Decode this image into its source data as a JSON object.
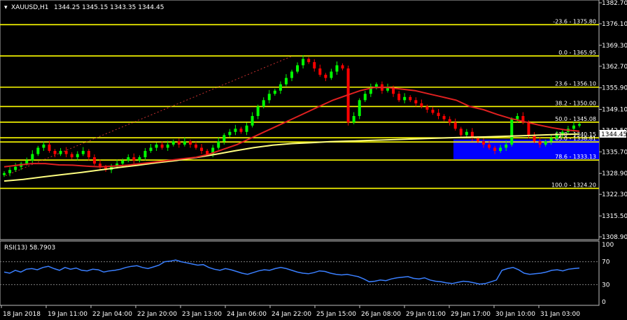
{
  "header": {
    "symbol": "XAUUSD,H1",
    "ohlc": "1344.25 1345.15 1343.35 1344.45"
  },
  "rsi": {
    "label": "RSI(13) 58.7903",
    "levels": [
      "100",
      "70",
      "30",
      "0"
    ],
    "value_ticks": [
      100,
      70,
      30,
      0
    ],
    "series": [
      52,
      50,
      55,
      52,
      57,
      58,
      56,
      60,
      62,
      58,
      55,
      60,
      57,
      59,
      55,
      54,
      57,
      56,
      52,
      54,
      55,
      57,
      60,
      62,
      63,
      60,
      58,
      61,
      64,
      70,
      71,
      73,
      70,
      68,
      66,
      64,
      65,
      60,
      57,
      55,
      58,
      56,
      53,
      50,
      48,
      51,
      54,
      56,
      55,
      58,
      60,
      58,
      55,
      52,
      50,
      49,
      51,
      54,
      53,
      50,
      48,
      47,
      48,
      46,
      44,
      40,
      35,
      36,
      38,
      37,
      40,
      42,
      43,
      44,
      41,
      40,
      42,
      38,
      36,
      35,
      33,
      32,
      34,
      36,
      35,
      33,
      31,
      32,
      35,
      38,
      55,
      58,
      60,
      56,
      50,
      48,
      49,
      50,
      52,
      55,
      56,
      54,
      57,
      58,
      59
    ]
  },
  "price_axis": {
    "labels": [
      "1382.70",
      "1376.10",
      "1369.30",
      "1362.70",
      "1355.90",
      "1349.10",
      "1342.50",
      "1335.70",
      "1328.90",
      "1322.30",
      "1315.50",
      "1308.90"
    ],
    "current_price": "1344.45"
  },
  "time_axis": {
    "labels": [
      "18 Jan 2018",
      "19 Jan 11:00",
      "22 Jan 04:00",
      "22 Jan 20:00",
      "23 Jan 13:00",
      "24 Jan 06:00",
      "24 Jan 22:00",
      "25 Jan 15:00",
      "26 Jan 08:00",
      "29 Jan 01:00",
      "29 Jan 17:00",
      "30 Jan 10:00",
      "31 Jan 03:00"
    ]
  },
  "fibonacci": [
    {
      "label": "-23.6 - 1375.80",
      "price": 1375.8
    },
    {
      "label": "0.0 - 1365.95",
      "price": 1365.95
    },
    {
      "label": "23.6 - 1356.10",
      "price": 1356.1
    },
    {
      "label": "38.2 - 1350.00",
      "price": 1350.0
    },
    {
      "label": "50.0 - 1345.08",
      "price": 1345.08
    },
    {
      "label": "61.8 - 1340.15",
      "price": 1340.15
    },
    {
      "label": "65.0 - 1338.81",
      "price": 1338.81
    },
    {
      "label": "78.6 - 1333.13",
      "price": 1333.13
    },
    {
      "label": "100.0 - 1324.20",
      "price": 1324.2
    }
  ],
  "colors": {
    "background": "#000000",
    "bull": "#00ff00",
    "bear": "#ff0000",
    "fib_line": "#ffff00",
    "ma_fast": "#e02020",
    "ma_slow": "#ffff80",
    "rsi_line": "#3a7fff",
    "zone": "#0000ff",
    "trendline": "#c83030"
  },
  "chart_data": {
    "type": "candlestick",
    "symbol": "XAUUSD",
    "timeframe": "H1",
    "ylim": [
      1308.9,
      1382.7
    ],
    "x_tick_labels": [
      "18 Jan 2018",
      "19 Jan 11:00",
      "22 Jan 04:00",
      "22 Jan 20:00",
      "23 Jan 13:00",
      "24 Jan 06:00",
      "24 Jan 22:00",
      "25 Jan 15:00",
      "26 Jan 08:00",
      "29 Jan 01:00",
      "29 Jan 17:00",
      "30 Jan 10:00",
      "31 Jan 03:00"
    ],
    "y_tick_labels": [
      "1382.70",
      "1376.10",
      "1369.30",
      "1362.70",
      "1355.90",
      "1349.10",
      "1342.50",
      "1335.70",
      "1328.90",
      "1322.30",
      "1315.50",
      "1308.90"
    ],
    "close_path": [
      1329,
      1330,
      1331,
      1332,
      1333,
      1335,
      1337,
      1338,
      1336,
      1335,
      1336,
      1335,
      1334,
      1335,
      1336,
      1334,
      1332,
      1331,
      1330,
      1331,
      1332,
      1333,
      1334,
      1333,
      1334,
      1336,
      1337,
      1338,
      1337,
      1338,
      1339,
      1338,
      1339,
      1338,
      1337,
      1336,
      1335,
      1337,
      1339,
      1341,
      1342,
      1343,
      1342,
      1344,
      1347,
      1350,
      1352,
      1354,
      1355,
      1357,
      1359,
      1361,
      1363,
      1365,
      1364,
      1362,
      1360,
      1359,
      1361,
      1363,
      1362,
      1345,
      1347,
      1352,
      1354,
      1356,
      1357,
      1355,
      1356,
      1354,
      1352,
      1353,
      1352,
      1351,
      1350,
      1349,
      1348,
      1347,
      1346,
      1345,
      1343,
      1341,
      1342,
      1340,
      1339,
      1338,
      1337,
      1336,
      1337,
      1338,
      1346,
      1347,
      1345,
      1341,
      1339,
      1338,
      1339,
      1340,
      1341,
      1342,
      1343,
      1344,
      1344.45
    ],
    "ma_fast": [
      1331,
      1331.5,
      1332,
      1332,
      1331.6,
      1331.5,
      1331.2,
      1331,
      1331.2,
      1331.5,
      1332,
      1332.5,
      1333,
      1333.5,
      1334,
      1335,
      1336.5,
      1338,
      1340,
      1342,
      1344,
      1346,
      1348,
      1350,
      1352,
      1353.5,
      1355,
      1356,
      1356,
      1355.5,
      1355,
      1354,
      1353,
      1352,
      1350,
      1349,
      1347.5,
      1346.2,
      1345.2,
      1344.2,
      1343.3,
      1342.6,
      1342.2
    ],
    "ma_slow": [
      1326.5,
      1327,
      1327.8,
      1328.5,
      1329.2,
      1330,
      1330.8,
      1331.5,
      1332.3,
      1333,
      1333.9,
      1334.9,
      1336,
      1337,
      1337.8,
      1338.3,
      1338.6,
      1338.9,
      1339.1,
      1339.3,
      1339.5,
      1339.7,
      1339.9,
      1340.1,
      1340.3,
      1340.4,
      1340.6,
      1340.8,
      1341,
      1341.2,
      1341.3
    ],
    "zone": {
      "price_high": 1339.6,
      "price_low": 1333.4
    }
  }
}
